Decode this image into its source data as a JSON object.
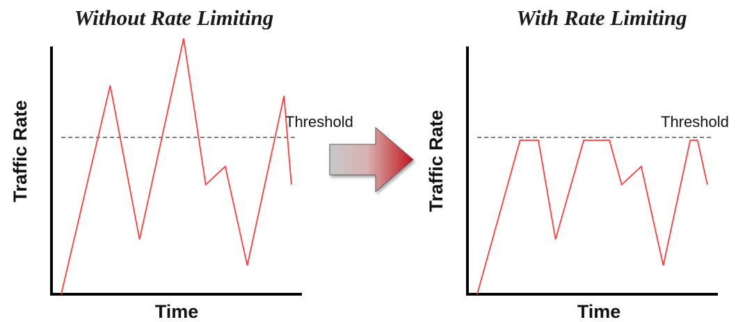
{
  "panels": [
    {
      "title": "Without Rate Limiting",
      "ylabel": "Traffic Rate",
      "xlabel": "Time",
      "threshold_label": "Threshold",
      "traffic_profile": [
        {
          "t": 0,
          "v": 0
        },
        {
          "t": 0.2,
          "v": 0.8
        },
        {
          "t": 0.32,
          "v": 0.21
        },
        {
          "t": 0.5,
          "v": 0.98
        },
        {
          "t": 0.59,
          "v": 0.42
        },
        {
          "t": 0.67,
          "v": 0.49
        },
        {
          "t": 0.76,
          "v": 0.11
        },
        {
          "t": 0.91,
          "v": 0.76
        },
        {
          "t": 0.94,
          "v": 0.42
        }
      ]
    },
    {
      "title": "With Rate Limiting",
      "ylabel": "Traffic Rate",
      "xlabel": "Time",
      "threshold_label": "Threshold",
      "traffic_profile": [
        {
          "t": 0,
          "v": 0
        },
        {
          "t": 0.175,
          "v": 0.59
        },
        {
          "t": 0.25,
          "v": 0.59
        },
        {
          "t": 0.32,
          "v": 0.21
        },
        {
          "t": 0.435,
          "v": 0.59
        },
        {
          "t": 0.54,
          "v": 0.59
        },
        {
          "t": 0.59,
          "v": 0.42
        },
        {
          "t": 0.67,
          "v": 0.49
        },
        {
          "t": 0.76,
          "v": 0.11
        },
        {
          "t": 0.87,
          "v": 0.59
        },
        {
          "t": 0.9,
          "v": 0.59
        },
        {
          "t": 0.94,
          "v": 0.42
        }
      ]
    }
  ],
  "threshold_level": 0.59,
  "colors": {
    "traffic": "#ff3b3b",
    "arrow_start": "#c8c8c8",
    "arrow_end": "#c0151a",
    "axis": "#000000"
  },
  "arrow_icon": "right-arrow-icon"
}
